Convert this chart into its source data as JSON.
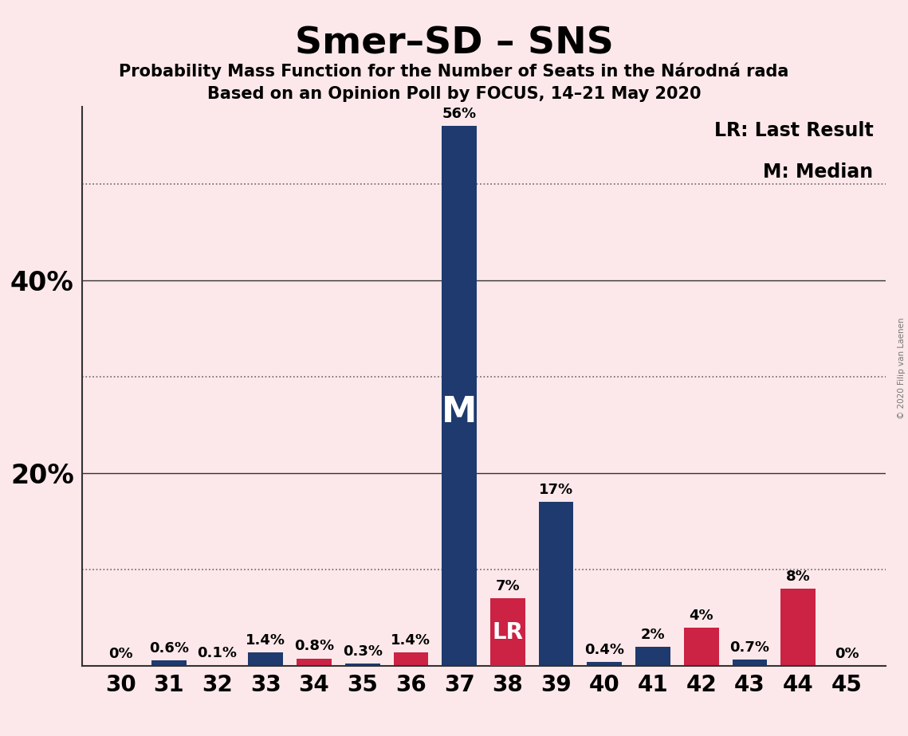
{
  "title": "Smer–SD – SNS",
  "subtitle1": "Probability Mass Function for the Number of Seats in the Národná rada",
  "subtitle2": "Based on an Opinion Poll by FOCUS, 14–21 May 2020",
  "copyright": "© 2020 Filip van Laenen",
  "seats": [
    30,
    31,
    32,
    33,
    34,
    35,
    36,
    37,
    38,
    39,
    40,
    41,
    42,
    43,
    44,
    45
  ],
  "pmf_values": [
    0.0,
    0.6,
    0.1,
    1.4,
    0.0,
    0.3,
    0.0,
    56.0,
    7.0,
    17.0,
    0.4,
    2.0,
    0.0,
    0.7,
    0.0,
    0.0
  ],
  "lr_values": [
    0.0,
    0.0,
    0.0,
    0.0,
    0.8,
    0.0,
    1.4,
    0.0,
    7.0,
    0.0,
    0.0,
    0.0,
    4.0,
    0.0,
    8.0,
    0.0
  ],
  "pmf_labels": [
    "0%",
    "0.6%",
    "0.1%",
    "1.4%",
    "",
    "0.3%",
    "",
    "56%",
    "7%",
    "17%",
    "0.4%",
    "2%",
    "",
    "0.7%",
    "",
    "0%"
  ],
  "lr_labels": [
    "",
    "",
    "",
    "",
    "0.8%",
    "",
    "1.4%",
    "",
    "LR",
    "",
    "",
    "",
    "4%",
    "",
    "8%",
    ""
  ],
  "median_seat": 37,
  "lr_seat": 38,
  "blue_color": "#1e3a6e",
  "red_color": "#cc2244",
  "background_color": "#fce8ea",
  "ylim": [
    0,
    58
  ],
  "solid_yticks": [
    20,
    40
  ],
  "solid_ytick_labels": [
    "20%",
    "40%"
  ],
  "dotted_yticks": [
    10,
    30,
    50
  ],
  "bar_width": 0.72,
  "legend_text1": "LR: Last Result",
  "legend_text2": "M: Median",
  "title_fontsize": 34,
  "subtitle_fontsize": 15,
  "tick_label_fontsize": 20,
  "ytick_label_fontsize": 24,
  "bar_label_fontsize": 13,
  "legend_fontsize": 17
}
